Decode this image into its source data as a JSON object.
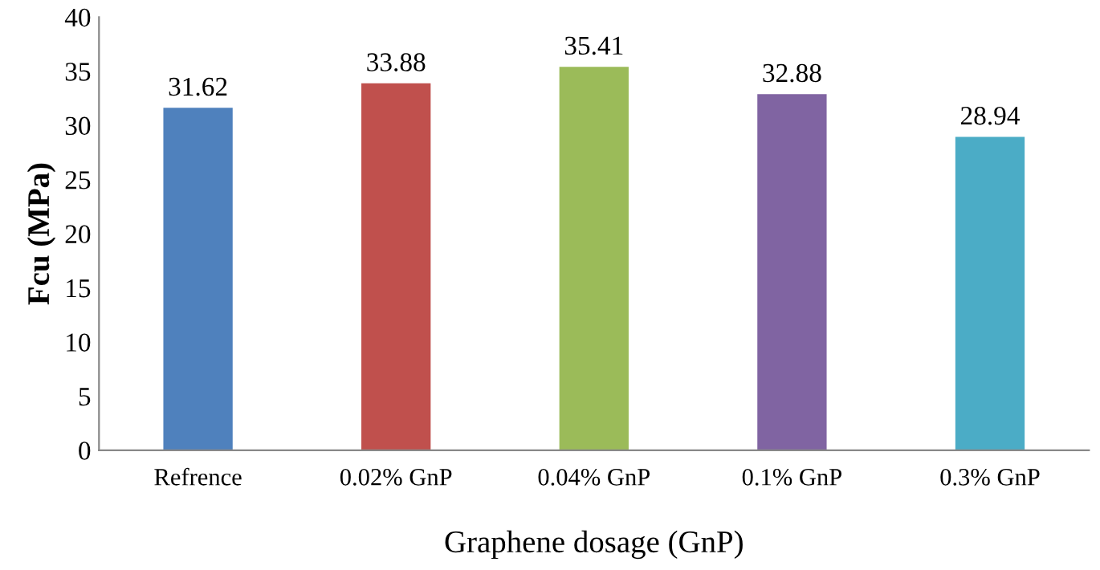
{
  "chart_data": {
    "type": "bar",
    "xlabel": "Graphene dosage (GnP)",
    "ylabel": "Fcu (MPa)",
    "categories": [
      "Refrence",
      "0.02% GnP",
      "0.04% GnP",
      "0.1% GnP",
      "0.3% GnP"
    ],
    "values": [
      31.62,
      33.88,
      35.41,
      32.88,
      28.94
    ],
    "colors": [
      "#4f81bd",
      "#c0504d",
      "#9bbb59",
      "#8064a2",
      "#4bacc6"
    ],
    "ylim": [
      0,
      40
    ],
    "yticks": [
      0,
      5,
      10,
      15,
      20,
      25,
      30,
      35,
      40
    ],
    "grid": false,
    "data_labels": true
  }
}
